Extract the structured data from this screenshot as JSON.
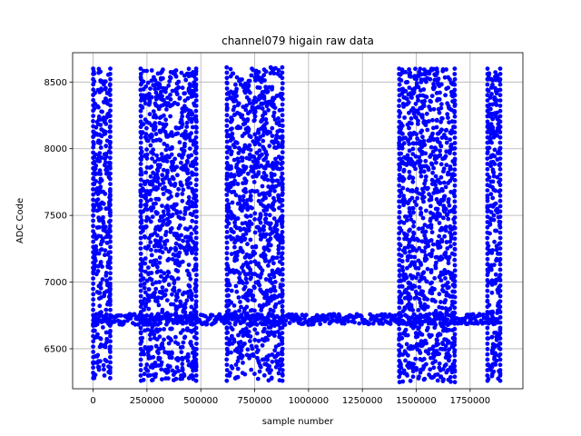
{
  "chart_data": {
    "type": "scatter",
    "title": "channel079 higain raw data",
    "xlabel": "sample number",
    "ylabel": "ADC Code",
    "xlim": [
      -95000,
      1995000
    ],
    "ylim": [
      6200,
      8720
    ],
    "grid": true,
    "x_ticks": [
      0,
      250000,
      500000,
      750000,
      1000000,
      1250000,
      1500000,
      1750000
    ],
    "x_tick_labels": [
      "0",
      "250000",
      "500000",
      "750000",
      "1000000",
      "1250000",
      "1500000",
      "1750000"
    ],
    "y_ticks": [
      6500,
      7000,
      7500,
      8000,
      8500
    ],
    "y_tick_labels": [
      "6500",
      "7000",
      "7500",
      "8000",
      "8500"
    ],
    "series": [
      {
        "color": "#0000ff",
        "marker": "dot",
        "baseline": {
          "x_start": 0,
          "x_end": 1880000,
          "y_min": 6680,
          "y_max": 6760
        },
        "noise_bursts": [
          {
            "x_start": 0,
            "x_end": 80000,
            "y_min": 6280,
            "y_max": 8600
          },
          {
            "x_start": 220000,
            "x_end": 480000,
            "y_min": 6260,
            "y_max": 8600
          },
          {
            "x_start": 620000,
            "x_end": 880000,
            "y_min": 6260,
            "y_max": 8610
          },
          {
            "x_start": 1420000,
            "x_end": 1680000,
            "y_min": 6250,
            "y_max": 8600
          },
          {
            "x_start": 1830000,
            "x_end": 1890000,
            "y_min": 6260,
            "y_max": 8600
          }
        ]
      }
    ]
  }
}
